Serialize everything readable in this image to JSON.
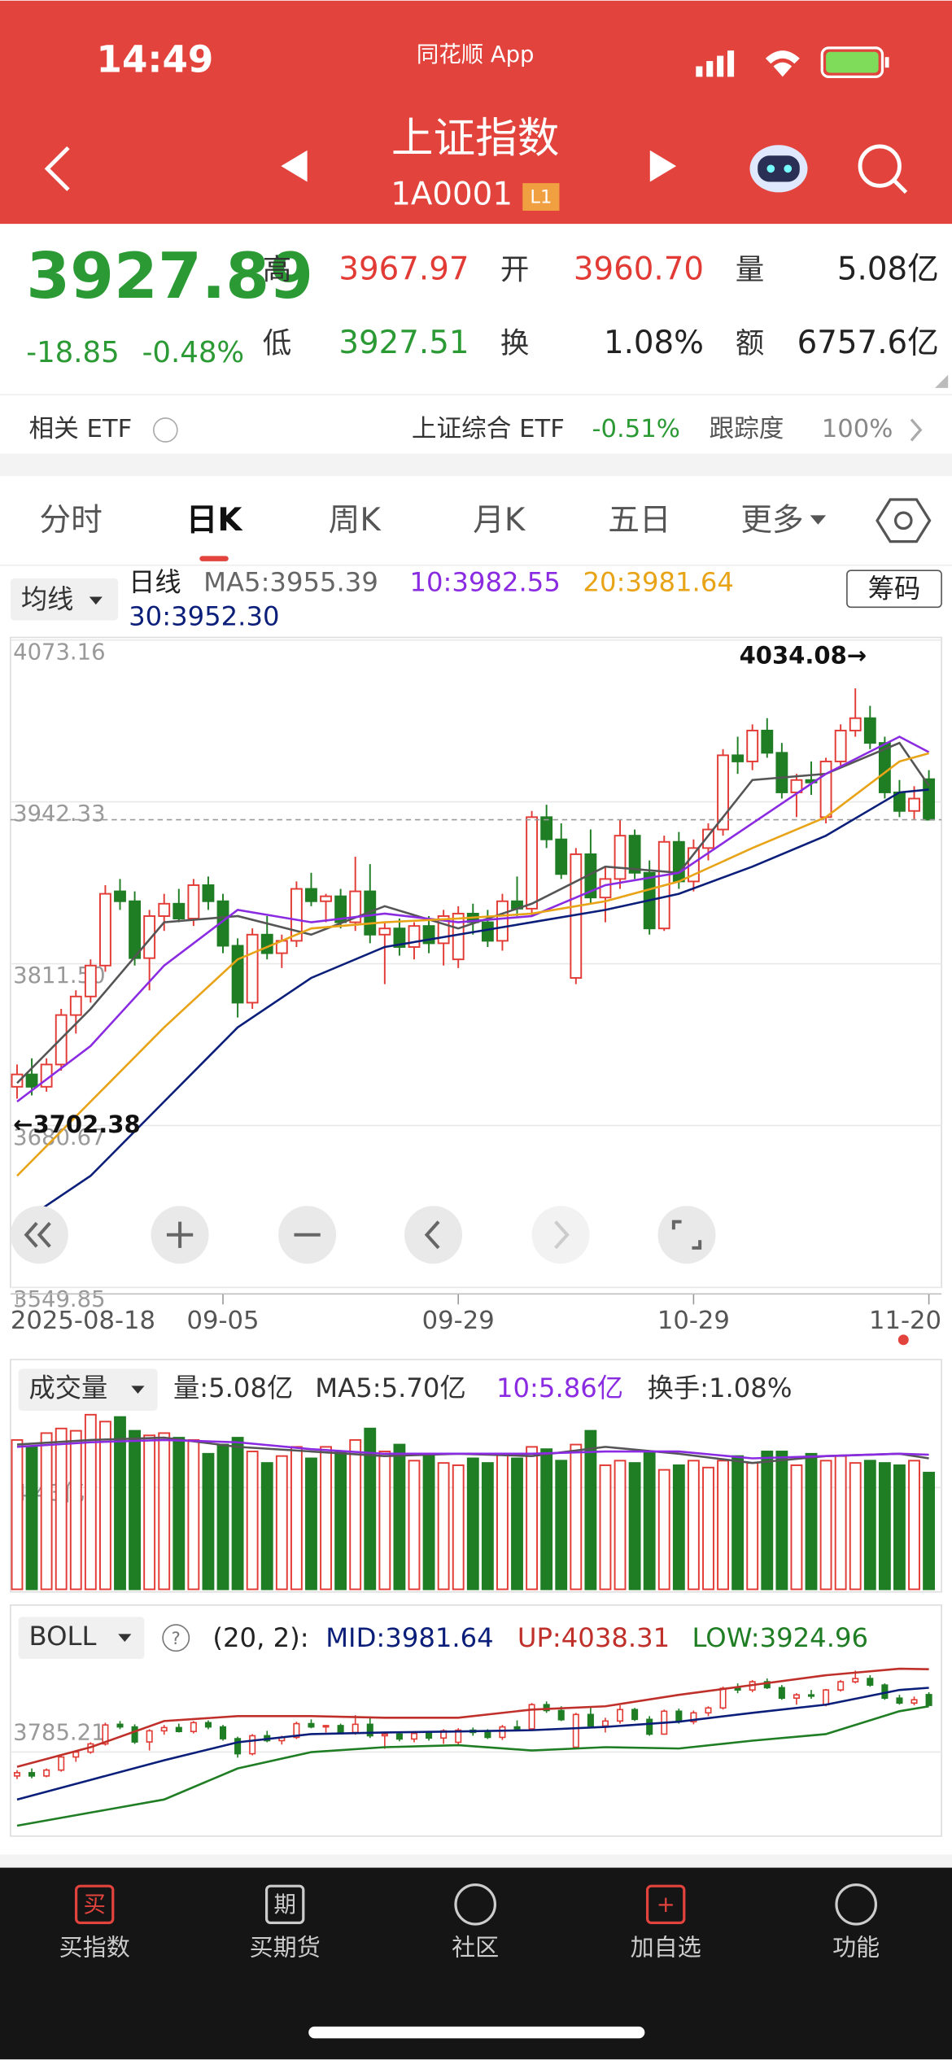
{
  "status": {
    "time": "14:49",
    "app": "同花顺 App"
  },
  "header": {
    "title": "上证指数",
    "code": "1A0001",
    "badge": "L1"
  },
  "quote": {
    "price": "3927.89",
    "change": "-18.85",
    "pct": "-0.48%",
    "items": [
      {
        "label": "高",
        "value": "3967.97",
        "color": "#e23b35"
      },
      {
        "label": "开",
        "value": "3960.70",
        "color": "#e23b35"
      },
      {
        "label": "量",
        "value": "5.08亿",
        "color": "#222222"
      },
      {
        "label": "低",
        "value": "3927.51",
        "color": "#2b9a35"
      },
      {
        "label": "换",
        "value": "1.08%",
        "color": "#222222"
      },
      {
        "label": "额",
        "value": "6757.6亿",
        "color": "#222222"
      }
    ]
  },
  "etf": {
    "label": "相关 ETF",
    "name": "上证综合 ETF",
    "pct": "-0.51%",
    "track_label": "跟踪度",
    "track": "100%"
  },
  "tabs": {
    "items": [
      "分时",
      "日K",
      "周K",
      "月K",
      "五日",
      "更多"
    ],
    "active": 1
  },
  "kline": {
    "ma_button": "均线",
    "period": "日线",
    "chip": "筹码",
    "ma_labels": [
      {
        "text": "MA5:3955.39",
        "color": "#666666"
      },
      {
        "text": "10:3982.55",
        "color": "#8a2be2"
      },
      {
        "text": "20:3981.64",
        "color": "#e8a317"
      },
      {
        "text": "30:3952.30",
        "color": "#0b1f7a"
      }
    ],
    "max_label": "4034.08→",
    "min_label": "←3702.38",
    "ylim": [
      3549.85,
      4073.16
    ],
    "yticks": [
      4073.16,
      3942.33,
      {
        "value": 3811.5,
        "label": "3811.50"
      },
      3680.67,
      3549.85
    ],
    "up_color": "#e23b35",
    "down_color": "#1f7d24",
    "candles": [
      [
        3712,
        3730,
        3702.38,
        3722
      ],
      [
        3722,
        3735,
        3705,
        3712
      ],
      [
        3712,
        3735,
        3708,
        3730
      ],
      [
        3730,
        3775,
        3725,
        3770
      ],
      [
        3770,
        3790,
        3755,
        3785
      ],
      [
        3785,
        3815,
        3780,
        3810
      ],
      [
        3810,
        3875,
        3805,
        3868
      ],
      [
        3870,
        3880,
        3855,
        3862
      ],
      [
        3862,
        3870,
        3810,
        3816
      ],
      [
        3816,
        3855,
        3790,
        3850
      ],
      [
        3850,
        3868,
        3838,
        3860
      ],
      [
        3860,
        3872,
        3845,
        3848
      ],
      [
        3848,
        3880,
        3842,
        3875
      ],
      [
        3875,
        3882,
        3855,
        3862
      ],
      [
        3862,
        3868,
        3820,
        3826
      ],
      [
        3826,
        3832,
        3768,
        3780
      ],
      [
        3780,
        3840,
        3775,
        3835
      ],
      [
        3835,
        3850,
        3815,
        3820
      ],
      [
        3820,
        3835,
        3808,
        3830
      ],
      [
        3830,
        3878,
        3825,
        3872
      ],
      [
        3872,
        3885,
        3858,
        3862
      ],
      [
        3862,
        3868,
        3845,
        3866
      ],
      [
        3866,
        3872,
        3840,
        3845
      ],
      [
        3845,
        3898,
        3838,
        3870
      ],
      [
        3870,
        3892,
        3828,
        3835
      ],
      [
        3835,
        3845,
        3795,
        3840
      ],
      [
        3840,
        3848,
        3818,
        3825
      ],
      [
        3825,
        3845,
        3815,
        3842
      ],
      [
        3842,
        3850,
        3820,
        3828
      ],
      [
        3828,
        3855,
        3810,
        3850
      ],
      [
        3815,
        3858,
        3808,
        3852
      ],
      [
        3852,
        3860,
        3835,
        3845
      ],
      [
        3845,
        3855,
        3825,
        3830
      ],
      [
        3830,
        3868,
        3822,
        3862
      ],
      [
        3862,
        3882,
        3850,
        3856
      ],
      [
        3856,
        3935,
        3850,
        3930
      ],
      [
        3930,
        3940,
        3905,
        3912
      ],
      [
        3912,
        3925,
        3880,
        3884
      ],
      [
        3800,
        3905,
        3795,
        3900
      ],
      [
        3900,
        3920,
        3860,
        3865
      ],
      [
        3865,
        3890,
        3845,
        3880
      ],
      [
        3880,
        3928,
        3872,
        3915
      ],
      [
        3915,
        3920,
        3880,
        3885
      ],
      [
        3885,
        3895,
        3835,
        3840
      ],
      [
        3840,
        3915,
        3838,
        3910
      ],
      [
        3910,
        3918,
        3872,
        3878
      ],
      [
        3878,
        3912,
        3870,
        3905
      ],
      [
        3905,
        3925,
        3895,
        3920
      ],
      [
        3920,
        3985,
        3915,
        3980
      ],
      [
        3980,
        3995,
        3965,
        3975
      ],
      [
        3975,
        4005,
        3968,
        4000
      ],
      [
        4000,
        4010,
        3978,
        3982
      ],
      [
        3982,
        3990,
        3945,
        3950
      ],
      [
        3950,
        3965,
        3930,
        3960
      ],
      [
        3960,
        3975,
        3948,
        3958
      ],
      [
        3930,
        3978,
        3925,
        3975
      ],
      [
        3975,
        4005,
        3970,
        4000
      ],
      [
        4000,
        4034.08,
        3995,
        4010
      ],
      [
        4010,
        4020,
        3985,
        3990
      ],
      [
        3990,
        3995,
        3945,
        3950
      ],
      [
        3950,
        3960,
        3930,
        3935
      ],
      [
        3935,
        3955,
        3928,
        3945
      ],
      [
        3960.7,
        3967.97,
        3927.51,
        3927.89
      ]
    ],
    "xlabels": [
      {
        "index": 0,
        "label": "2025-08-18"
      },
      {
        "index": 14,
        "label": "09-05"
      },
      {
        "index": 30,
        "label": "09-29"
      },
      {
        "index": 46,
        "label": "10-29"
      },
      {
        "index": 62,
        "label": "11-20"
      }
    ],
    "ma": {
      "x": [
        0,
        5,
        10,
        15,
        20,
        25,
        30,
        35,
        40,
        45,
        50,
        55,
        60,
        62
      ],
      "series": [
        {
          "name": "MA5",
          "color": "#555555",
          "values": [
            3715,
            3775,
            3845,
            3850,
            3835,
            3858,
            3840,
            3860,
            3890,
            3885,
            3960,
            3965,
            3990,
            3955.39
          ]
        },
        {
          "name": "MA10",
          "color": "#8a2be2",
          "values": [
            3700,
            3745,
            3810,
            3855,
            3845,
            3852,
            3845,
            3850,
            3875,
            3885,
            3925,
            3965,
            3995,
            3982.55
          ]
        },
        {
          "name": "MA20",
          "color": "#e8a317",
          "values": [
            3640,
            3700,
            3760,
            3815,
            3840,
            3845,
            3848,
            3852,
            3862,
            3878,
            3905,
            3930,
            3975,
            3981.64
          ]
        },
        {
          "name": "MA30",
          "color": "#0b1f7a",
          "values": [
            3600,
            3640,
            3700,
            3760,
            3800,
            3825,
            3835,
            3845,
            3855,
            3868,
            3890,
            3915,
            3950,
            3952.3
          ]
        }
      ]
    }
  },
  "volume": {
    "button": "成交量",
    "labels": [
      {
        "text": "量:5.08亿",
        "color": "#333333"
      },
      {
        "text": "MA5:5.70亿",
        "color": "#333333"
      },
      {
        "text": "10:5.86亿",
        "color": "#8a2be2"
      },
      {
        "text": "换手:1.08%",
        "color": "#333333"
      }
    ],
    "ylim": [
      0,
      8
    ],
    "yticks": [
      {
        "value": 4.43,
        "label": "4.43亿"
      }
    ],
    "values": [
      6.5,
      6.2,
      6.8,
      7.0,
      6.9,
      7.6,
      7.3,
      7.5,
      6.9,
      6.7,
      6.8,
      6.6,
      6.5,
      5.9,
      6.3,
      6.6,
      6.0,
      5.5,
      5.8,
      6.2,
      5.7,
      6.2,
      6.0,
      6.5,
      7.0,
      6.0,
      6.3,
      5.6,
      5.9,
      5.5,
      5.4,
      5.7,
      5.5,
      5.9,
      5.7,
      6.2,
      6.1,
      5.6,
      6.3,
      6.9,
      5.4,
      5.6,
      5.5,
      6.0,
      5.2,
      5.4,
      5.6,
      5.3,
      5.6,
      5.8,
      5.5,
      6.0,
      6.0,
      5.4,
      5.9,
      5.6,
      5.8,
      5.5,
      5.6,
      5.5,
      5.4,
      5.6,
      5.08
    ],
    "ma": {
      "x": [
        0,
        5,
        10,
        15,
        20,
        25,
        30,
        35,
        40,
        45,
        50,
        55,
        60,
        62
      ],
      "series": [
        {
          "name": "MA5",
          "color": "#555555",
          "values": [
            6.3,
            6.5,
            6.6,
            6.2,
            6.0,
            5.8,
            5.9,
            5.8,
            6.2,
            5.9,
            5.5,
            5.8,
            5.9,
            5.7
          ]
        },
        {
          "name": "MA10",
          "color": "#8a2be2",
          "values": [
            6.2,
            6.4,
            6.5,
            6.4,
            6.1,
            5.9,
            5.9,
            5.9,
            6.0,
            6.0,
            5.7,
            5.8,
            5.9,
            5.86
          ]
        }
      ]
    }
  },
  "boll": {
    "button": "BOLL",
    "params": "(20, 2):",
    "labels": [
      {
        "text": "MID:3981.64",
        "color": "#0b1f7a"
      },
      {
        "text": "UP:4038.31",
        "color": "#c0302b"
      },
      {
        "text": "LOW:3924.96",
        "color": "#1f7d24"
      }
    ],
    "ylim": [
      3540,
      4090
    ],
    "yticks": [
      3785.21
    ],
    "x": [
      0,
      5,
      10,
      15,
      20,
      25,
      30,
      35,
      40,
      45,
      50,
      55,
      60,
      62
    ],
    "series": [
      {
        "name": "UP",
        "color": "#c0302b",
        "values": [
          3740,
          3800,
          3880,
          3895,
          3895,
          3890,
          3890,
          3915,
          3925,
          3960,
          3990,
          4020,
          4040,
          4038.31
        ]
      },
      {
        "name": "MID",
        "color": "#0b1f7a",
        "values": [
          3640,
          3700,
          3760,
          3815,
          3840,
          3845,
          3848,
          3852,
          3862,
          3878,
          3905,
          3930,
          3975,
          3981.64
        ]
      },
      {
        "name": "LOW",
        "color": "#1f7d24",
        "values": [
          3560,
          3600,
          3640,
          3735,
          3785,
          3800,
          3806,
          3790,
          3800,
          3796,
          3820,
          3840,
          3910,
          3924.96
        ]
      }
    ]
  },
  "nav": [
    {
      "icon": "买",
      "label": "买指数"
    },
    {
      "icon": "期",
      "label": "买期货"
    },
    {
      "icon": "",
      "label": "社区"
    },
    {
      "icon": "+",
      "label": "加自选"
    },
    {
      "icon": "",
      "label": "功能"
    }
  ]
}
